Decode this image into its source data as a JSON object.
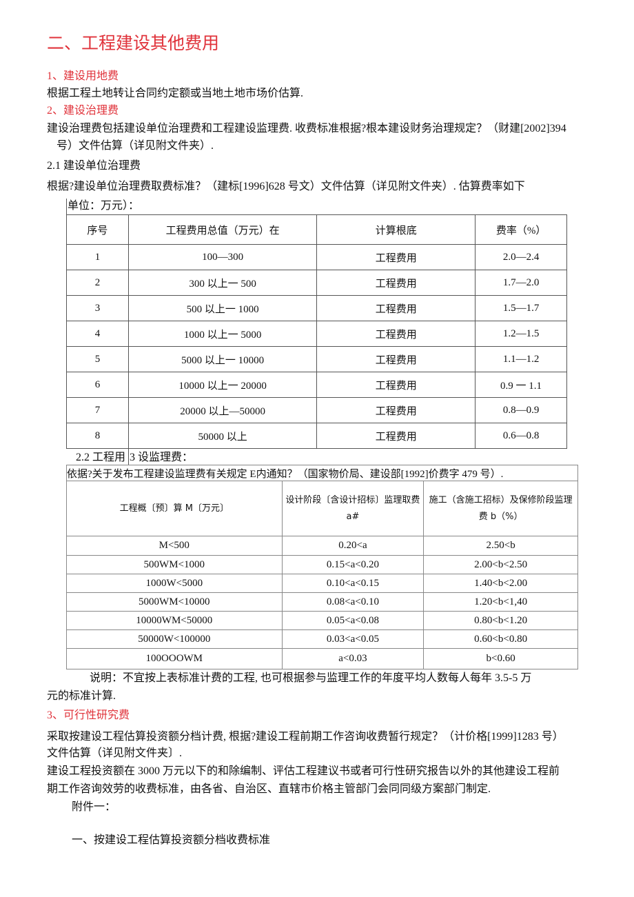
{
  "heading": "二、工程建设其他费用",
  "s1": {
    "title": "1、建设用地费",
    "text": "根据工程土地转让合同约定额或当地土地市场价估算."
  },
  "s2": {
    "title": "2、建设治理费",
    "text_line1": "建设治理费包括建设单位治理费和工程建设监理费. 收费标准根据?根本建设财务治理规定？（财建[2002]394",
    "text_line2": "号）文件估算（详见附文件夹）.",
    "sub21": "2.1 建设单位治理费",
    "sub21_text": "根据?建设单位治理费取费标准？（建标[1996]628 号文）文件估算（详见附文件夹）. 估算费率如下",
    "unit": "单位：万元）：",
    "table1": {
      "headers": [
        "序号",
        "工程费用总值（万元）在",
        "计算根底",
        "费率（%）"
      ],
      "rows": [
        [
          "1",
          "100—300",
          "工程费用",
          "2.0—2.4"
        ],
        [
          "2",
          "300 以上一 500",
          "工程费用",
          "1.7—2.0"
        ],
        [
          "3",
          "500 以上一 1000",
          "工程费用",
          "1.5—1.7"
        ],
        [
          "4",
          "1000 以上一 5000",
          "工程费用",
          "1.2—1.5"
        ],
        [
          "5",
          "5000 以上一 10000",
          "工程费用",
          "1.1—1.2"
        ],
        [
          "6",
          "10000 以上一 20000",
          "工程费用",
          "0.9 一 1.1"
        ],
        [
          "7",
          "20000 以上—50000",
          "工程费用",
          "0.8—0.9"
        ],
        [
          "8",
          "50000 以上",
          "工程费用",
          "0.6—0.8"
        ]
      ]
    },
    "sub22_a": "2.2 工程用",
    "sub22_b": "3 设监理费：",
    "table2": {
      "basis": "依据?关于发布工程建设监理费有关规定 E内通知？（国家物价局、建设部[1992]价费字 479 号）.",
      "headers": [
        "工程概〔预〕算 M〔万元〕",
        "设计阶段〔含设计招标〕监理取费 a#",
        "施工（含施工招标）及保修阶段监理费 b（%）"
      ],
      "rows": [
        [
          "M<500",
          "0.20<a",
          "2.50<b"
        ],
        [
          "500WM<1000",
          "0.15<a<0.20",
          "2.00<b<2.50"
        ],
        [
          "1000W<5000",
          "0.10<a<0.15",
          "1.40<b<2.00"
        ],
        [
          "5000WM<10000",
          "0.08<a<0.10",
          "1.20<b<1,40"
        ],
        [
          "10000WM<50000",
          "0.05<a<0.08",
          "0.80<b<1.20"
        ],
        [
          "50000W<100000",
          "0.03<a<0.05",
          "0.60<b<0.80"
        ],
        [
          "100OOOWM",
          "a<0.03",
          "b<0.60"
        ]
      ]
    },
    "note_line1": "说明：不宜按上表标准计费的工程, 也可根据参与监理工作的年度平均人数每人每年 3.5-5 万",
    "note_line2": "元的标准计算."
  },
  "s3": {
    "title": "3、可行性研究费",
    "p1_line1": "采取按建设工程估算投资额分档计费, 根据?建设工程前期工作咨询收费暂行规定？（计价格[1999]1283 号）",
    "p1_line2": "文件估算（详见附文件夹〕.",
    "p2_line1": "建设工程投资额在 3000 万元以下的和除编制、评估工程建议书或者可行性研究报告以外的其他建设工程前",
    "p2_line2": "期工作咨询效劳的收费标准，由各省、自治区、直辖市价格主管部门会同同级方案部门制定.",
    "attach": "附件一：",
    "attach_title": "一、按建设工程估算投资额分档收费标准"
  },
  "colors": {
    "heading": "#e0323a",
    "text": "#111111"
  }
}
